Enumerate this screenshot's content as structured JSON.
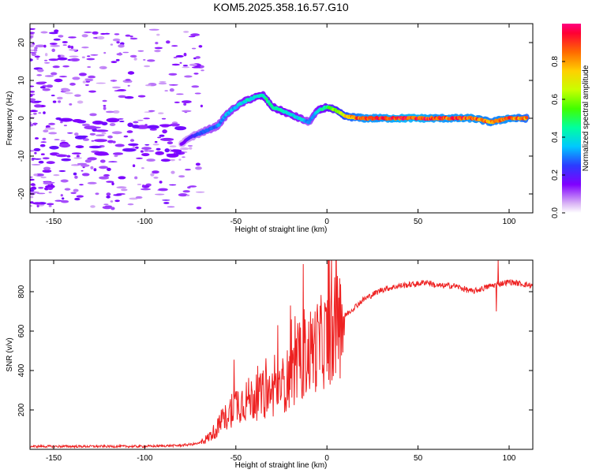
{
  "figure": {
    "title": "KOM5.2025.358.16.57.G10"
  },
  "chart_data": [
    {
      "type": "heatmap",
      "xlabel": "Height of straight line (km)",
      "ylabel": "Frequency (Hz)",
      "xlim": [
        -163,
        113
      ],
      "ylim": [
        -25,
        25
      ],
      "xticks": [
        -150,
        -100,
        -50,
        0,
        50,
        100
      ],
      "yticks": [
        20,
        10,
        0,
        -10,
        -20
      ],
      "colorbar": {
        "label": "Normalized spectral amplitude",
        "range": [
          0,
          1
        ],
        "ticks": [
          "0.0",
          "0.2",
          "0.4",
          "0.6",
          "0.8"
        ]
      },
      "ridge": {
        "x": [
          -80,
          -75,
          -70,
          -65,
          -60,
          -55,
          -50,
          -45,
          -40,
          -35,
          -30,
          -25,
          -20,
          -15,
          -10,
          -5,
          0,
          5,
          10,
          20,
          30,
          40,
          50,
          60,
          70,
          80,
          90,
          100,
          110
        ],
        "frequency": [
          -7,
          -5,
          -4,
          -3,
          -2,
          1,
          3,
          4.5,
          5.5,
          6,
          3,
          2,
          1,
          0,
          -1,
          2,
          3,
          2,
          0.5,
          0,
          0,
          0,
          0,
          0,
          0,
          0,
          -1,
          0,
          0
        ],
        "amplitude": [
          0.15,
          0.2,
          0.25,
          0.3,
          0.3,
          0.35,
          0.35,
          0.4,
          0.4,
          0.45,
          0.45,
          0.45,
          0.4,
          0.4,
          0.3,
          0.4,
          0.5,
          0.6,
          0.75,
          0.9,
          0.9,
          0.95,
          0.95,
          0.9,
          0.9,
          0.9,
          0.85,
          0.9,
          0.8
        ]
      }
    },
    {
      "type": "line",
      "xlabel": "Height of straight line (km)",
      "ylabel": "SNR (v/v)",
      "xlim": [
        -163,
        113
      ],
      "ylim": [
        0,
        960
      ],
      "xticks": [
        -150,
        -100,
        -50,
        0,
        50,
        100
      ],
      "yticks": [
        200,
        400,
        600,
        800
      ],
      "line_color": "#ee2222",
      "series": [
        {
          "name": "SNR",
          "x": [
            -163,
            -140,
            -120,
            -100,
            -80,
            -70,
            -65,
            -60,
            -55,
            -50,
            -45,
            -40,
            -35,
            -30,
            -25,
            -20,
            -15,
            -10,
            -5,
            0,
            5,
            10,
            15,
            20,
            30,
            40,
            50,
            55,
            60,
            70,
            80,
            90,
            95,
            100,
            113
          ],
          "values": [
            15,
            15,
            15,
            15,
            20,
            30,
            60,
            110,
            170,
            230,
            250,
            260,
            270,
            290,
            320,
            370,
            430,
            490,
            530,
            560,
            620,
            680,
            720,
            760,
            810,
            830,
            840,
            850,
            830,
            830,
            800,
            830,
            840,
            850,
            830
          ],
          "spikes": [
            {
              "x": -51,
              "value": 455
            },
            {
              "x": -35,
              "value": 400
            },
            {
              "x": -27,
              "value": 630
            },
            {
              "x": -20,
              "value": 730
            },
            {
              "x": -13,
              "value": 940
            },
            {
              "x": 94,
              "value": 960
            },
            {
              "x": 93,
              "value": 700
            }
          ]
        }
      ]
    }
  ]
}
